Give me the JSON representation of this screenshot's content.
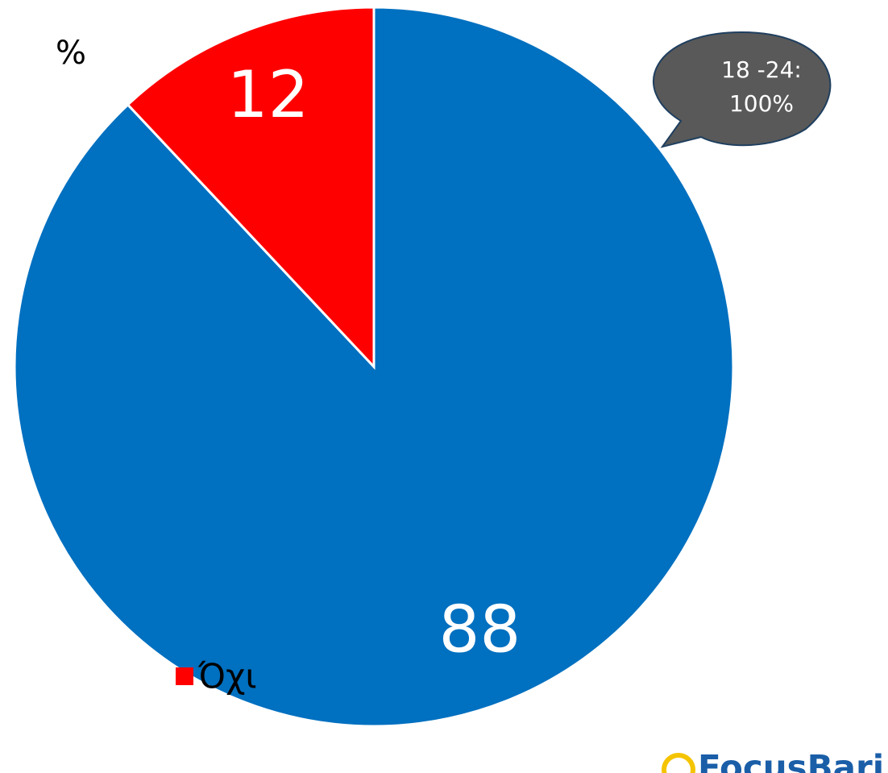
{
  "chart_data": {
    "type": "pie",
    "unit_label": "%",
    "categories": [
      null,
      "Όχι"
    ],
    "values": [
      88,
      12
    ],
    "colors": [
      "#0070c0",
      "#ff0000"
    ],
    "annotation": [
      "18 -24:",
      "100%"
    ],
    "logo": "FocusBari",
    "legend": "bottom-left"
  }
}
